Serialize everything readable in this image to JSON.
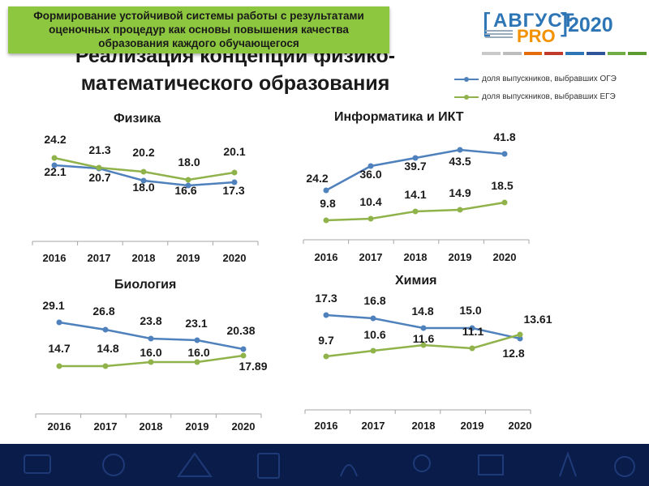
{
  "banner": {
    "text": "Формирование устойчивой системы работы с результатами оценочных процедур как основы повышения качества образования каждого обучающегося"
  },
  "slide_title": "Реализация концепции физико-математического образования",
  "logo": {
    "word": "АВГУСТ",
    "pro": "PRO",
    "year": "2020"
  },
  "accent_colors": {
    "oge": "#4f81bd",
    "ege": "#8fb34a",
    "banner": "#8dc63f",
    "logo_blue": "#2e75b6",
    "logo_orange": "#f39200"
  },
  "legend": {
    "oge": "доля выпускников, выбравших ОГЭ",
    "ege": "доля выпускников, выбравших ЕГЭ"
  },
  "chart_data": [
    {
      "type": "line",
      "title": "Физика",
      "categories": [
        "2016",
        "2017",
        "2018",
        "2019",
        "2020"
      ],
      "series": [
        {
          "name": "доля выпускников, выбравших ОГЭ",
          "values": [
            22.1,
            20.7,
            18.0,
            16.6,
            17.3
          ],
          "labels": [
            "22.1",
            "20.7",
            "18.0",
            "16.6",
            "17.3"
          ]
        },
        {
          "name": "доля выпускников, выбравших ЕГЭ",
          "values": [
            24.2,
            21.3,
            20.2,
            18.0,
            20.1
          ],
          "labels": [
            "24.2",
            "21.3",
            "20.2",
            "18.0",
            "20.1"
          ]
        }
      ]
    },
    {
      "type": "line",
      "title": "Информатика и ИКТ",
      "categories": [
        "2016",
        "2017",
        "2018",
        "2019",
        "2020"
      ],
      "series": [
        {
          "name": "доля выпускников, выбравших ОГЭ",
          "values": [
            24.2,
            36.0,
            39.7,
            43.5,
            41.8
          ],
          "labels": [
            "24.2",
            "36.0",
            "39.7",
            "43.5",
            "41.8"
          ]
        },
        {
          "name": "доля выпускников, выбравших ЕГЭ",
          "values": [
            9.8,
            10.4,
            14.1,
            14.9,
            18.5
          ],
          "labels": [
            "9.8",
            "10.4",
            "14.1",
            "14.9",
            "18.5"
          ]
        }
      ]
    },
    {
      "type": "line",
      "title": "Биология",
      "categories": [
        "2016",
        "2017",
        "2018",
        "2019",
        "2020"
      ],
      "series": [
        {
          "name": "доля выпускников, выбравших ОГЭ",
          "values": [
            29.1,
            26.8,
            23.8,
            23.1,
            20.38
          ],
          "labels": [
            "29.1",
            "26.8",
            "23.8",
            "23.1",
            "20.38"
          ]
        },
        {
          "name": "доля выпускников, выбравших ЕГЭ",
          "values": [
            14.7,
            14.8,
            16.0,
            16.0,
            17.89
          ],
          "labels": [
            "14.7",
            "14.8",
            "16.0",
            "16.0",
            "17.89"
          ]
        }
      ]
    },
    {
      "type": "line",
      "title": "Химия",
      "categories": [
        "2016",
        "2017",
        "2018",
        "2019",
        "2020"
      ],
      "series": [
        {
          "name": "доля выпускников, выбравших ОГЭ",
          "values": [
            17.3,
            16.8,
            14.8,
            15.0,
            12.8
          ],
          "labels": [
            "17.3",
            "16.8",
            "14.8",
            "15.0",
            "12.8"
          ]
        },
        {
          "name": "доля выпускников, выбравших ЕГЭ",
          "values": [
            9.7,
            10.6,
            11.6,
            11.1,
            13.61
          ],
          "labels": [
            "9.7",
            "10.6",
            "11.6",
            "11.1",
            "13.61"
          ]
        }
      ]
    }
  ]
}
